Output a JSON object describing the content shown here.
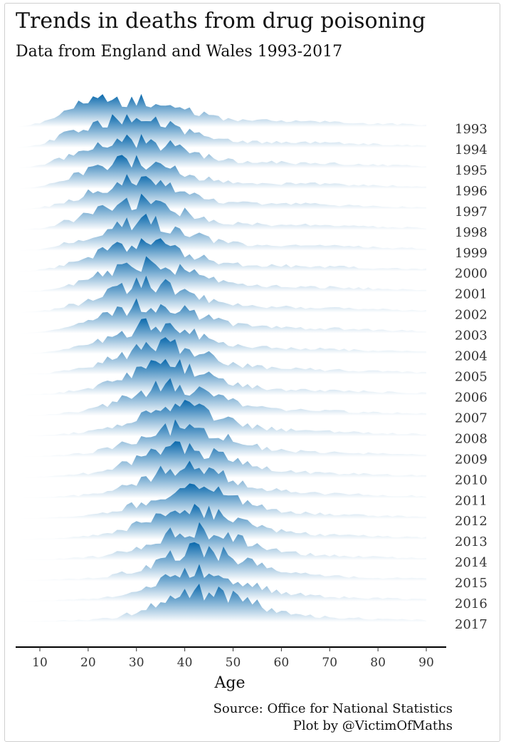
{
  "chart_data": {
    "type": "area",
    "title": "Trends in deaths from drug poisoning",
    "subtitle": "Data from England and Wales 1993-2017",
    "xlabel": "Age",
    "ylabel": "",
    "source": "Source: Office for National Statistics",
    "credit": "Plot by @VictimOfMaths",
    "xlim": [
      5,
      94
    ],
    "x_ticks": [
      10,
      20,
      30,
      40,
      50,
      60,
      70,
      80,
      90
    ],
    "grid": false,
    "legend": "none",
    "colors": {
      "peak": "#0868ac",
      "base": "#ffffff",
      "axis": "#000000"
    },
    "series": [
      {
        "name": "1993",
        "peak_age": 27,
        "spread": 11
      },
      {
        "name": "1994",
        "peak_age": 28,
        "spread": 10
      },
      {
        "name": "1995",
        "peak_age": 29,
        "spread": 10
      },
      {
        "name": "1996",
        "peak_age": 29,
        "spread": 9
      },
      {
        "name": "1997",
        "peak_age": 30,
        "spread": 9
      },
      {
        "name": "1998",
        "peak_age": 30,
        "spread": 9
      },
      {
        "name": "1999",
        "peak_age": 31,
        "spread": 9
      },
      {
        "name": "2000",
        "peak_age": 31,
        "spread": 9
      },
      {
        "name": "2001",
        "peak_age": 32,
        "spread": 9
      },
      {
        "name": "2002",
        "peak_age": 32,
        "spread": 9
      },
      {
        "name": "2003",
        "peak_age": 33,
        "spread": 9
      },
      {
        "name": "2004",
        "peak_age": 34,
        "spread": 9
      },
      {
        "name": "2005",
        "peak_age": 35,
        "spread": 9
      },
      {
        "name": "2006",
        "peak_age": 36,
        "spread": 9
      },
      {
        "name": "2007",
        "peak_age": 37,
        "spread": 9
      },
      {
        "name": "2008",
        "peak_age": 38,
        "spread": 9
      },
      {
        "name": "2009",
        "peak_age": 39,
        "spread": 9
      },
      {
        "name": "2010",
        "peak_age": 39,
        "spread": 9
      },
      {
        "name": "2011",
        "peak_age": 40,
        "spread": 9
      },
      {
        "name": "2012",
        "peak_age": 41,
        "spread": 9
      },
      {
        "name": "2013",
        "peak_age": 41,
        "spread": 9
      },
      {
        "name": "2014",
        "peak_age": 42,
        "spread": 9
      },
      {
        "name": "2015",
        "peak_age": 43,
        "spread": 9
      },
      {
        "name": "2016",
        "peak_age": 43,
        "spread": 9
      },
      {
        "name": "2017",
        "peak_age": 44,
        "spread": 9
      }
    ]
  }
}
